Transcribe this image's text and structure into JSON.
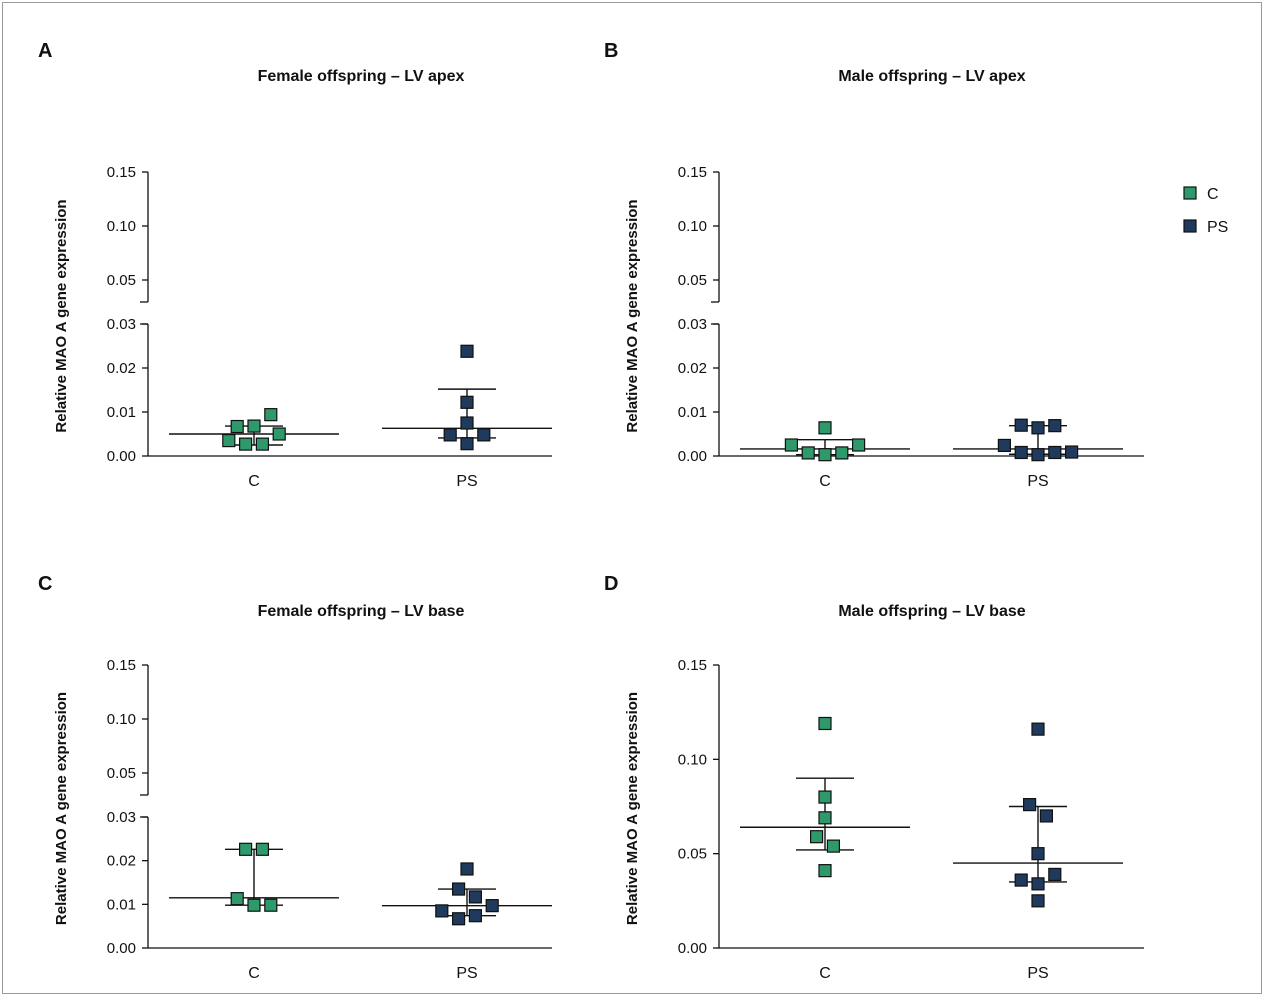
{
  "colors": {
    "C": "#2e9a6c",
    "PS": "#1f3a5c",
    "axis": "#111111"
  },
  "legend": [
    {
      "label": "C",
      "color_key": "C"
    },
    {
      "label": "PS",
      "color_key": "PS"
    }
  ],
  "chart_data": [
    {
      "panel": "A",
      "type": "scatter",
      "title": "Female offspring – LV apex",
      "ylabel": "Relative MAO A gene expression",
      "categories": [
        "C",
        "PS"
      ],
      "y_axis": "broken",
      "ylim": [
        0,
        0.15
      ],
      "yticks_lower": [
        "0.00",
        "0.01",
        "0.02",
        "0.03"
      ],
      "yticks_upper": [
        "0.05",
        "0.10",
        "0.15"
      ],
      "series": [
        {
          "category": "C",
          "median": 0.005,
          "q1": 0.0025,
          "q3": 0.0068,
          "points": [
            [
              -0.12,
              0.0035
            ],
            [
              -0.08,
              0.0067
            ],
            [
              -0.04,
              0.0027
            ],
            [
              0.0,
              0.0068
            ],
            [
              0.04,
              0.0027
            ],
            [
              0.08,
              0.0094
            ],
            [
              0.12,
              0.005
            ]
          ]
        },
        {
          "category": "PS",
          "median": 0.0063,
          "q1": 0.0041,
          "q3": 0.0152,
          "points": [
            [
              -0.08,
              0.0048
            ],
            [
              0.0,
              0.0238
            ],
            [
              0.0,
              0.0122
            ],
            [
              0.0,
              0.0075
            ],
            [
              0.0,
              0.0028
            ],
            [
              0.08,
              0.0048
            ]
          ]
        }
      ]
    },
    {
      "panel": "B",
      "type": "scatter",
      "title": "Male offspring – LV apex",
      "ylabel": "Relative MAO A gene expression",
      "categories": [
        "C",
        "PS"
      ],
      "y_axis": "broken",
      "ylim": [
        0,
        0.15
      ],
      "yticks_lower": [
        "0.00",
        "0.01",
        "0.02",
        "0.03"
      ],
      "yticks_upper": [
        "0.05",
        "0.10",
        "0.15"
      ],
      "series": [
        {
          "category": "C",
          "median": 0.0016,
          "q1": 0.0003,
          "q3": 0.0037,
          "points": [
            [
              -0.16,
              0.0025
            ],
            [
              -0.08,
              0.0007
            ],
            [
              0.0,
              0.0064
            ],
            [
              0.0,
              0.0003
            ],
            [
              0.08,
              0.0007
            ],
            [
              0.16,
              0.0025
            ]
          ]
        },
        {
          "category": "PS",
          "median": 0.0016,
          "q1": 0.0004,
          "q3": 0.0069,
          "points": [
            [
              -0.16,
              0.0024
            ],
            [
              -0.08,
              0.0008
            ],
            [
              -0.08,
              0.007
            ],
            [
              0.0,
              0.0064
            ],
            [
              0.0,
              0.0003
            ],
            [
              0.08,
              0.0069
            ],
            [
              0.08,
              0.0008
            ],
            [
              0.16,
              0.0009
            ]
          ]
        }
      ]
    },
    {
      "panel": "C",
      "type": "scatter",
      "title": "Female offspring – LV base",
      "ylabel": "Relative MAO A gene expression",
      "categories": [
        "C",
        "PS"
      ],
      "y_axis": "broken",
      "ylim": [
        0,
        0.15
      ],
      "yticks_lower": [
        "0.00",
        "0.01",
        "0.02",
        "0.03"
      ],
      "yticks_upper": [
        "0.05",
        "0.10",
        "0.15"
      ],
      "series": [
        {
          "category": "C",
          "median": 0.0115,
          "q1": 0.0098,
          "q3": 0.0226,
          "points": [
            [
              -0.08,
              0.0113
            ],
            [
              -0.04,
              0.0226
            ],
            [
              0.0,
              0.0098
            ],
            [
              0.04,
              0.0226
            ],
            [
              0.08,
              0.0098
            ]
          ]
        },
        {
          "category": "PS",
          "median": 0.0097,
          "q1": 0.0074,
          "q3": 0.0135,
          "points": [
            [
              -0.12,
              0.0085
            ],
            [
              -0.04,
              0.0135
            ],
            [
              -0.04,
              0.0067
            ],
            [
              0.0,
              0.0181
            ],
            [
              0.04,
              0.0117
            ],
            [
              0.04,
              0.0074
            ],
            [
              0.12,
              0.0097
            ]
          ]
        }
      ]
    },
    {
      "panel": "D",
      "type": "scatter",
      "title": "Male offspring – LV base",
      "ylabel": "Relative MAO A gene expression",
      "categories": [
        "C",
        "PS"
      ],
      "y_axis": "linear",
      "ylim": [
        0,
        0.15
      ],
      "yticks": [
        "0.00",
        "0.05",
        "0.10",
        "0.15"
      ],
      "series": [
        {
          "category": "C",
          "median": 0.064,
          "q1": 0.052,
          "q3": 0.09,
          "points": [
            [
              0.0,
              0.119
            ],
            [
              0.0,
              0.08
            ],
            [
              0.0,
              0.069
            ],
            [
              -0.04,
              0.059
            ],
            [
              0.04,
              0.054
            ],
            [
              0.0,
              0.041
            ]
          ]
        },
        {
          "category": "PS",
          "median": 0.045,
          "q1": 0.035,
          "q3": 0.075,
          "points": [
            [
              0.0,
              0.116
            ],
            [
              -0.04,
              0.076
            ],
            [
              0.04,
              0.07
            ],
            [
              0.0,
              0.05
            ],
            [
              -0.08,
              0.036
            ],
            [
              0.0,
              0.034
            ],
            [
              0.08,
              0.039
            ],
            [
              0.0,
              0.025
            ]
          ]
        }
      ]
    }
  ]
}
